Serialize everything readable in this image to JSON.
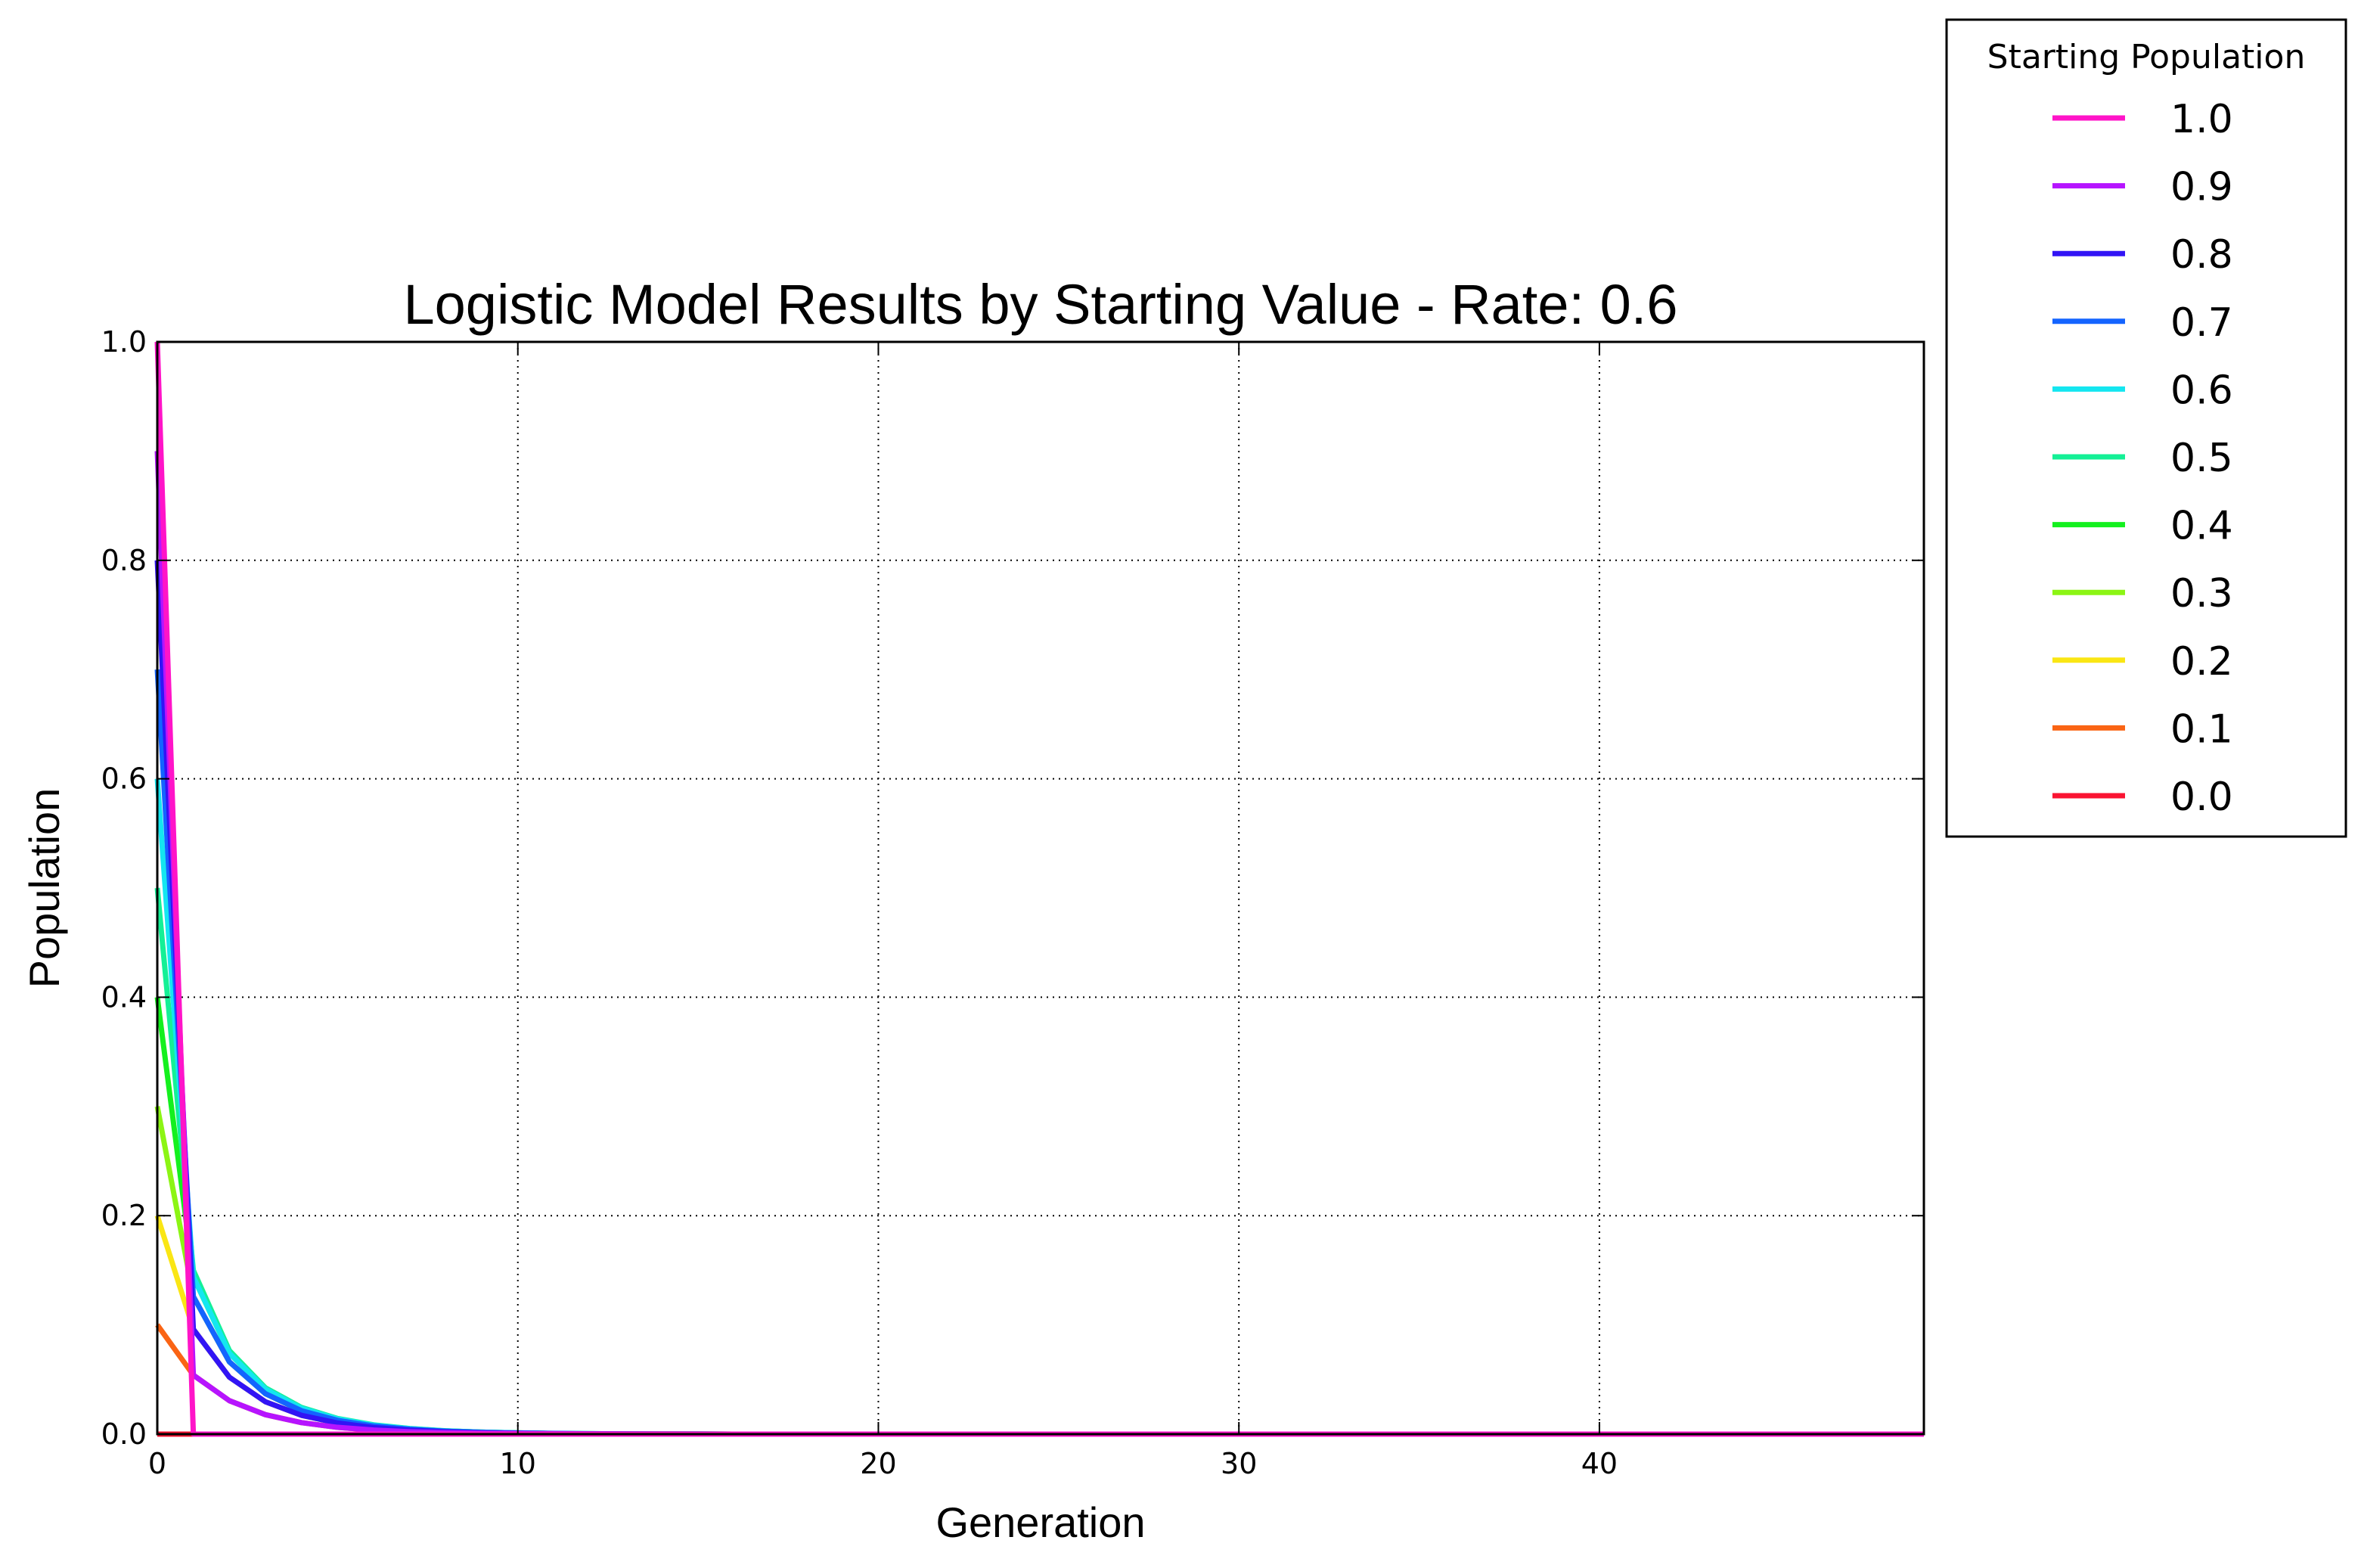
{
  "chart_data": {
    "type": "line",
    "title": "Logistic Model Results by Starting Value - Rate: 0.6",
    "xlabel": "Generation",
    "ylabel": "Population",
    "xlim": [
      0,
      49
    ],
    "ylim": [
      0.0,
      1.0
    ],
    "xticks": [
      0,
      10,
      20,
      30,
      40
    ],
    "xtick_labels": [
      "0",
      "10",
      "20",
      "30",
      "40"
    ],
    "yticks": [
      0.0,
      0.2,
      0.4,
      0.6,
      0.8,
      1.0
    ],
    "ytick_labels": [
      "0.0",
      "0.2",
      "0.4",
      "0.6",
      "0.8",
      "1.0"
    ],
    "grid": true,
    "legend": {
      "title": "Starting Population",
      "placement": "outside upper right"
    },
    "x": [
      0,
      1,
      2,
      3,
      4,
      5,
      6,
      7,
      8,
      9,
      10,
      11,
      12,
      13,
      14,
      15,
      16,
      17,
      18,
      19,
      20,
      21,
      22,
      23,
      24,
      25,
      26,
      27,
      28,
      29,
      30,
      31,
      32,
      33,
      34,
      35,
      36,
      37,
      38,
      39,
      40,
      41,
      42,
      43,
      44,
      45,
      46,
      47,
      48,
      49
    ],
    "series": [
      {
        "name": "1.0",
        "color": "#ff14c8",
        "values": [
          1.0,
          0.0,
          0.0,
          0.0,
          0.0,
          0.0,
          0.0,
          0.0,
          0.0,
          0.0,
          0.0,
          0.0,
          0.0,
          0.0,
          0.0,
          0.0,
          0.0,
          0.0,
          0.0,
          0.0,
          0.0,
          0.0,
          0.0,
          0.0,
          0.0,
          0.0,
          0.0,
          0.0,
          0.0,
          0.0,
          0.0,
          0.0,
          0.0,
          0.0,
          0.0,
          0.0,
          0.0,
          0.0,
          0.0,
          0.0,
          0.0,
          0.0,
          0.0,
          0.0,
          0.0,
          0.0,
          0.0,
          0.0,
          0.0,
          0.0
        ]
      },
      {
        "name": "0.9",
        "color": "#b614ff",
        "values": [
          0.9,
          0.054,
          0.0306,
          0.0178,
          0.0105,
          0.0062,
          0.0037,
          0.0022,
          0.0013,
          0.0008,
          0.0005,
          0.0003,
          0.0002,
          0.0001,
          0.0001,
          0.0,
          0.0,
          0.0,
          0.0,
          0.0,
          0.0,
          0.0,
          0.0,
          0.0,
          0.0,
          0.0,
          0.0,
          0.0,
          0.0,
          0.0,
          0.0,
          0.0,
          0.0,
          0.0,
          0.0,
          0.0,
          0.0,
          0.0,
          0.0,
          0.0,
          0.0,
          0.0,
          0.0,
          0.0,
          0.0,
          0.0,
          0.0,
          0.0,
          0.0,
          0.0
        ]
      },
      {
        "name": "0.8",
        "color": "#3214f5",
        "values": [
          0.8,
          0.096,
          0.0521,
          0.0296,
          0.0172,
          0.0102,
          0.006,
          0.0036,
          0.0022,
          0.0013,
          0.0008,
          0.0005,
          0.0003,
          0.0002,
          0.0001,
          0.0001,
          0.0,
          0.0,
          0.0,
          0.0,
          0.0,
          0.0,
          0.0,
          0.0,
          0.0,
          0.0,
          0.0,
          0.0,
          0.0,
          0.0,
          0.0,
          0.0,
          0.0,
          0.0,
          0.0,
          0.0,
          0.0,
          0.0,
          0.0,
          0.0,
          0.0,
          0.0,
          0.0,
          0.0,
          0.0,
          0.0,
          0.0,
          0.0,
          0.0,
          0.0
        ]
      },
      {
        "name": "0.7",
        "color": "#1464ff",
        "values": [
          0.7,
          0.126,
          0.0661,
          0.037,
          0.0214,
          0.0126,
          0.0075,
          0.0045,
          0.0027,
          0.0016,
          0.001,
          0.0006,
          0.0003,
          0.0002,
          0.0001,
          0.0001,
          0.0,
          0.0,
          0.0,
          0.0,
          0.0,
          0.0,
          0.0,
          0.0,
          0.0,
          0.0,
          0.0,
          0.0,
          0.0,
          0.0,
          0.0,
          0.0,
          0.0,
          0.0,
          0.0,
          0.0,
          0.0,
          0.0,
          0.0,
          0.0,
          0.0,
          0.0,
          0.0,
          0.0,
          0.0,
          0.0,
          0.0,
          0.0,
          0.0,
          0.0
        ]
      },
      {
        "name": "0.6",
        "color": "#14e6f0",
        "values": [
          0.6,
          0.144,
          0.074,
          0.0411,
          0.0236,
          0.0139,
          0.0082,
          0.0049,
          0.0029,
          0.0018,
          0.0011,
          0.0006,
          0.0004,
          0.0002,
          0.0001,
          0.0001,
          0.0,
          0.0,
          0.0,
          0.0,
          0.0,
          0.0,
          0.0,
          0.0,
          0.0,
          0.0,
          0.0,
          0.0,
          0.0,
          0.0,
          0.0,
          0.0,
          0.0,
          0.0,
          0.0,
          0.0,
          0.0,
          0.0,
          0.0,
          0.0,
          0.0,
          0.0,
          0.0,
          0.0,
          0.0,
          0.0,
          0.0,
          0.0,
          0.0,
          0.0
        ]
      },
      {
        "name": "0.5",
        "color": "#14f096",
        "values": [
          0.5,
          0.15,
          0.0765,
          0.0424,
          0.0244,
          0.0143,
          0.0085,
          0.0051,
          0.003,
          0.0018,
          0.0011,
          0.0007,
          0.0004,
          0.0002,
          0.0001,
          0.0001,
          0.0,
          0.0,
          0.0,
          0.0,
          0.0,
          0.0,
          0.0,
          0.0,
          0.0,
          0.0,
          0.0,
          0.0,
          0.0,
          0.0,
          0.0,
          0.0,
          0.0,
          0.0,
          0.0,
          0.0,
          0.0,
          0.0,
          0.0,
          0.0,
          0.0,
          0.0,
          0.0,
          0.0,
          0.0,
          0.0,
          0.0,
          0.0,
          0.0,
          0.0
        ]
      },
      {
        "name": "0.4",
        "color": "#14f01e",
        "values": [
          0.4,
          0.144,
          0.074,
          0.0411,
          0.0236,
          0.0139,
          0.0082,
          0.0049,
          0.0029,
          0.0018,
          0.0011,
          0.0006,
          0.0004,
          0.0002,
          0.0001,
          0.0001,
          0.0,
          0.0,
          0.0,
          0.0,
          0.0,
          0.0,
          0.0,
          0.0,
          0.0,
          0.0,
          0.0,
          0.0,
          0.0,
          0.0,
          0.0,
          0.0,
          0.0,
          0.0,
          0.0,
          0.0,
          0.0,
          0.0,
          0.0,
          0.0,
          0.0,
          0.0,
          0.0,
          0.0,
          0.0,
          0.0,
          0.0,
          0.0,
          0.0,
          0.0
        ]
      },
      {
        "name": "0.3",
        "color": "#8cf514",
        "values": [
          0.3,
          0.126,
          0.0661,
          0.037,
          0.0214,
          0.0126,
          0.0075,
          0.0045,
          0.0027,
          0.0016,
          0.001,
          0.0006,
          0.0003,
          0.0002,
          0.0001,
          0.0001,
          0.0,
          0.0,
          0.0,
          0.0,
          0.0,
          0.0,
          0.0,
          0.0,
          0.0,
          0.0,
          0.0,
          0.0,
          0.0,
          0.0,
          0.0,
          0.0,
          0.0,
          0.0,
          0.0,
          0.0,
          0.0,
          0.0,
          0.0,
          0.0,
          0.0,
          0.0,
          0.0,
          0.0,
          0.0,
          0.0,
          0.0,
          0.0,
          0.0,
          0.0
        ]
      },
      {
        "name": "0.2",
        "color": "#fae614",
        "values": [
          0.2,
          0.096,
          0.0521,
          0.0296,
          0.0172,
          0.0102,
          0.006,
          0.0036,
          0.0022,
          0.0013,
          0.0008,
          0.0005,
          0.0003,
          0.0002,
          0.0001,
          0.0001,
          0.0,
          0.0,
          0.0,
          0.0,
          0.0,
          0.0,
          0.0,
          0.0,
          0.0,
          0.0,
          0.0,
          0.0,
          0.0,
          0.0,
          0.0,
          0.0,
          0.0,
          0.0,
          0.0,
          0.0,
          0.0,
          0.0,
          0.0,
          0.0,
          0.0,
          0.0,
          0.0,
          0.0,
          0.0,
          0.0,
          0.0,
          0.0,
          0.0,
          0.0
        ]
      },
      {
        "name": "0.1",
        "color": "#fa6414",
        "values": [
          0.1,
          0.054,
          0.0306,
          0.0178,
          0.0105,
          0.0062,
          0.0037,
          0.0022,
          0.0013,
          0.0008,
          0.0005,
          0.0003,
          0.0002,
          0.0001,
          0.0001,
          0.0,
          0.0,
          0.0,
          0.0,
          0.0,
          0.0,
          0.0,
          0.0,
          0.0,
          0.0,
          0.0,
          0.0,
          0.0,
          0.0,
          0.0,
          0.0,
          0.0,
          0.0,
          0.0,
          0.0,
          0.0,
          0.0,
          0.0,
          0.0,
          0.0,
          0.0,
          0.0,
          0.0,
          0.0,
          0.0,
          0.0,
          0.0,
          0.0,
          0.0,
          0.0
        ]
      },
      {
        "name": "0.0",
        "color": "#fa1432",
        "values": [
          0.0,
          0.0,
          0.0,
          0.0,
          0.0,
          0.0,
          0.0,
          0.0,
          0.0,
          0.0,
          0.0,
          0.0,
          0.0,
          0.0,
          0.0,
          0.0,
          0.0,
          0.0,
          0.0,
          0.0,
          0.0,
          0.0,
          0.0,
          0.0,
          0.0,
          0.0,
          0.0,
          0.0,
          0.0,
          0.0,
          0.0,
          0.0,
          0.0,
          0.0,
          0.0,
          0.0,
          0.0,
          0.0,
          0.0,
          0.0,
          0.0,
          0.0,
          0.0,
          0.0,
          0.0,
          0.0,
          0.0,
          0.0,
          0.0,
          0.0
        ]
      }
    ]
  }
}
